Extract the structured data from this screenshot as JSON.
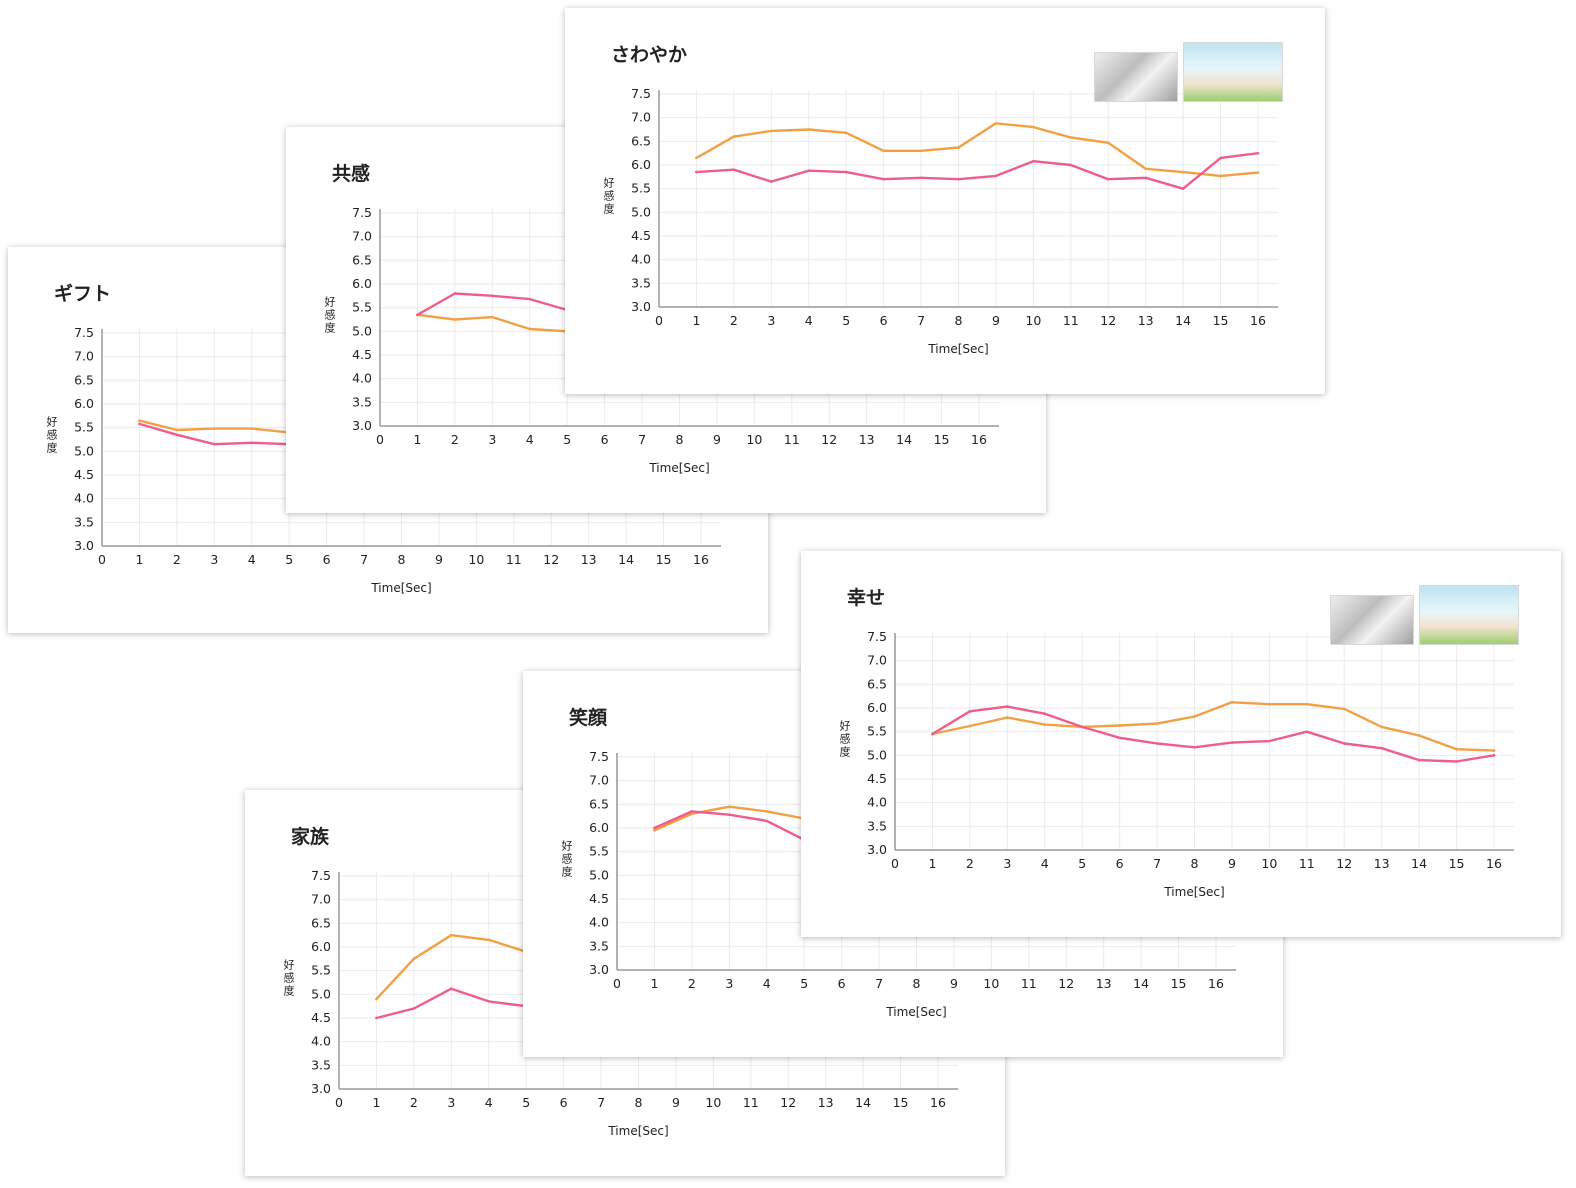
{
  "colors": {
    "series_pink": "#EF5E8B",
    "series_orange": "#F2A044",
    "grid": "#EBEBEB",
    "axis": "#999999"
  },
  "chart_data": [
    {
      "id": "gift",
      "type": "line",
      "title": "ギフト",
      "xlabel": "Time[Sec]",
      "ylabel": "好感度",
      "x_ticks": [
        "0",
        "1",
        "2",
        "3",
        "4",
        "5",
        "6",
        "7",
        "8",
        "9",
        "10",
        "11",
        "12",
        "13",
        "14",
        "15",
        "16"
      ],
      "y_ticks": [
        "3.0",
        "3.5",
        "4.0",
        "4.5",
        "5.0",
        "5.5",
        "6.0",
        "6.5",
        "7.0",
        "7.5"
      ],
      "xlim": [
        0,
        16
      ],
      "ylim": [
        3.0,
        7.5
      ],
      "grid": true,
      "legend": false,
      "has_thumbnails": false,
      "series": [
        {
          "color": "#F2A044",
          "x": [
            1,
            2,
            3,
            4,
            5
          ],
          "y": [
            5.65,
            5.45,
            5.48,
            5.48,
            5.4
          ]
        },
        {
          "color": "#EF5E8B",
          "x": [
            1,
            2,
            3,
            4,
            5
          ],
          "y": [
            5.58,
            5.35,
            5.15,
            5.18,
            5.15
          ]
        }
      ]
    },
    {
      "id": "kyoukan",
      "type": "line",
      "title": "共感",
      "xlabel": "Time[Sec]",
      "ylabel": "好感度",
      "x_ticks": [
        "0",
        "1",
        "2",
        "3",
        "4",
        "5",
        "6",
        "7",
        "8",
        "9",
        "10",
        "11",
        "12",
        "13",
        "14",
        "15",
        "16"
      ],
      "y_ticks": [
        "3.0",
        "3.5",
        "4.0",
        "4.5",
        "5.0",
        "5.5",
        "6.0",
        "6.5",
        "7.0",
        "7.5"
      ],
      "xlim": [
        0,
        16
      ],
      "ylim": [
        3.0,
        7.5
      ],
      "grid": true,
      "legend": false,
      "has_thumbnails": false,
      "series": [
        {
          "color": "#F2A044",
          "x": [
            1,
            2,
            3,
            4,
            5
          ],
          "y": [
            5.35,
            5.25,
            5.3,
            5.05,
            5.0
          ]
        },
        {
          "color": "#EF5E8B",
          "x": [
            1,
            2,
            3,
            4,
            5
          ],
          "y": [
            5.35,
            5.8,
            5.75,
            5.68,
            5.45
          ]
        }
      ]
    },
    {
      "id": "sawayaka",
      "type": "line",
      "title": "さわやか",
      "xlabel": "Time[Sec]",
      "ylabel": "好感度",
      "x_ticks": [
        "0",
        "1",
        "2",
        "3",
        "4",
        "5",
        "6",
        "7",
        "8",
        "9",
        "10",
        "11",
        "12",
        "13",
        "14",
        "15",
        "16"
      ],
      "y_ticks": [
        "3.0",
        "3.5",
        "4.0",
        "4.5",
        "5.0",
        "5.5",
        "6.0",
        "6.5",
        "7.0",
        "7.5"
      ],
      "xlim": [
        0,
        16
      ],
      "ylim": [
        3.0,
        7.5
      ],
      "grid": true,
      "legend": false,
      "has_thumbnails": true,
      "series": [
        {
          "color": "#F2A044",
          "x": [
            1,
            2,
            3,
            4,
            5,
            6,
            7,
            8,
            9,
            10,
            11,
            12,
            13,
            14,
            15,
            16
          ],
          "y": [
            6.15,
            6.6,
            6.72,
            6.75,
            6.68,
            6.3,
            6.3,
            6.37,
            6.88,
            6.8,
            6.58,
            6.47,
            5.92,
            5.85,
            5.77,
            5.84
          ]
        },
        {
          "color": "#EF5E8B",
          "x": [
            1,
            2,
            3,
            4,
            5,
            6,
            7,
            8,
            9,
            10,
            11,
            12,
            13,
            14,
            15,
            16
          ],
          "y": [
            5.85,
            5.9,
            5.65,
            5.88,
            5.85,
            5.7,
            5.73,
            5.7,
            5.77,
            6.08,
            6.0,
            5.7,
            5.73,
            5.5,
            6.15,
            6.25
          ]
        }
      ]
    },
    {
      "id": "shiawase",
      "type": "line",
      "title": "幸せ",
      "xlabel": "Time[Sec]",
      "ylabel": "好感度",
      "x_ticks": [
        "0",
        "1",
        "2",
        "3",
        "4",
        "5",
        "6",
        "7",
        "8",
        "9",
        "10",
        "11",
        "12",
        "13",
        "14",
        "15",
        "16"
      ],
      "y_ticks": [
        "3.0",
        "3.5",
        "4.0",
        "4.5",
        "5.0",
        "5.5",
        "6.0",
        "6.5",
        "7.0",
        "7.5"
      ],
      "xlim": [
        0,
        16
      ],
      "ylim": [
        3.0,
        7.5
      ],
      "grid": true,
      "legend": false,
      "has_thumbnails": true,
      "series": [
        {
          "color": "#F2A044",
          "x": [
            1,
            2,
            3,
            4,
            5,
            6,
            7,
            8,
            9,
            10,
            11,
            12,
            13,
            14,
            15,
            16
          ],
          "y": [
            5.45,
            5.62,
            5.8,
            5.65,
            5.6,
            5.63,
            5.67,
            5.82,
            6.12,
            6.08,
            6.08,
            5.98,
            5.6,
            5.42,
            5.13,
            5.1
          ]
        },
        {
          "color": "#EF5E8B",
          "x": [
            1,
            2,
            3,
            4,
            5,
            6,
            7,
            8,
            9,
            10,
            11,
            12,
            13,
            14,
            15,
            16
          ],
          "y": [
            5.45,
            5.93,
            6.03,
            5.88,
            5.6,
            5.37,
            5.25,
            5.17,
            5.27,
            5.3,
            5.5,
            5.25,
            5.15,
            4.9,
            4.87,
            5.0
          ]
        }
      ]
    },
    {
      "id": "egao",
      "type": "line",
      "title": "笑顔",
      "xlabel": "Time[Sec]",
      "ylabel": "好感度",
      "x_ticks": [
        "0",
        "1",
        "2",
        "3",
        "4",
        "5",
        "6",
        "7",
        "8",
        "9",
        "10",
        "11",
        "12",
        "13",
        "14",
        "15",
        "16"
      ],
      "y_ticks": [
        "3.0",
        "3.5",
        "4.0",
        "4.5",
        "5.0",
        "5.5",
        "6.0",
        "6.5",
        "7.0",
        "7.5"
      ],
      "xlim": [
        0,
        16
      ],
      "ylim": [
        3.0,
        7.5
      ],
      "grid": true,
      "legend": false,
      "has_thumbnails": false,
      "series": [
        {
          "color": "#F2A044",
          "x": [
            1,
            2,
            3,
            4,
            5
          ],
          "y": [
            5.95,
            6.3,
            6.45,
            6.35,
            6.2
          ]
        },
        {
          "color": "#EF5E8B",
          "x": [
            1,
            2,
            3,
            4,
            5
          ],
          "y": [
            6.0,
            6.35,
            6.28,
            6.15,
            5.75
          ]
        }
      ]
    },
    {
      "id": "kazoku",
      "type": "line",
      "title": "家族",
      "xlabel": "Time[Sec]",
      "ylabel": "好感度",
      "x_ticks": [
        "0",
        "1",
        "2",
        "3",
        "4",
        "5",
        "6",
        "7",
        "8",
        "9",
        "10",
        "11",
        "12",
        "13",
        "14",
        "15",
        "16"
      ],
      "y_ticks": [
        "3.0",
        "3.5",
        "4.0",
        "4.5",
        "5.0",
        "5.5",
        "6.0",
        "6.5",
        "7.0",
        "7.5"
      ],
      "xlim": [
        0,
        16
      ],
      "ylim": [
        3.0,
        7.5
      ],
      "grid": true,
      "legend": false,
      "has_thumbnails": false,
      "series": [
        {
          "color": "#F2A044",
          "x": [
            1,
            2,
            3,
            4,
            5
          ],
          "y": [
            4.9,
            5.75,
            6.25,
            6.15,
            5.9
          ]
        },
        {
          "color": "#EF5E8B",
          "x": [
            1,
            2,
            3,
            4,
            5
          ],
          "y": [
            4.5,
            4.7,
            5.12,
            4.85,
            4.75
          ]
        }
      ]
    }
  ]
}
